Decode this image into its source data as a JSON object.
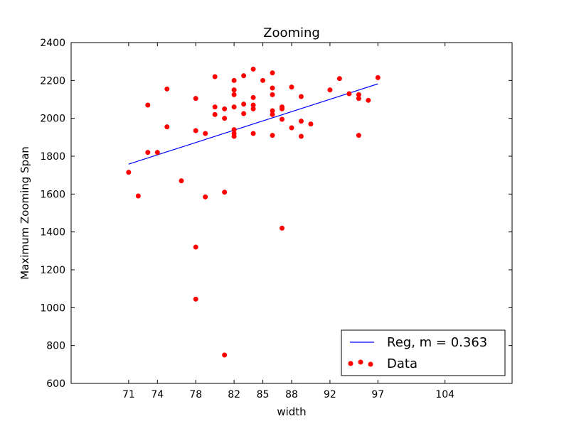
{
  "chart_data": {
    "type": "scatter",
    "title": "Zooming",
    "xlabel": "width",
    "ylabel": "Maximum Zooming Span",
    "xlim": [
      65,
      111
    ],
    "ylim": [
      600,
      2400
    ],
    "x_ticks": [
      71,
      74,
      78,
      82,
      85,
      88,
      92,
      97,
      104
    ],
    "y_ticks": [
      600,
      800,
      1000,
      1200,
      1400,
      1600,
      1800,
      2000,
      2200,
      2400
    ],
    "grid": false,
    "legend_position": "bottom-right",
    "series": [
      {
        "name": "Data",
        "kind": "scatter",
        "color": "#ff0000",
        "points": [
          [
            71,
            1715
          ],
          [
            72,
            1590
          ],
          [
            73,
            2070
          ],
          [
            73,
            1820
          ],
          [
            74,
            1820
          ],
          [
            75,
            2155
          ],
          [
            75,
            1955
          ],
          [
            76.5,
            1670
          ],
          [
            78,
            2105
          ],
          [
            78,
            1935
          ],
          [
            78,
            1320
          ],
          [
            78,
            1045
          ],
          [
            79,
            1920
          ],
          [
            79,
            1585
          ],
          [
            80,
            2220
          ],
          [
            80,
            2060
          ],
          [
            80,
            2020
          ],
          [
            81,
            2050
          ],
          [
            81,
            2000
          ],
          [
            81,
            1610
          ],
          [
            81,
            750
          ],
          [
            82,
            2200
          ],
          [
            82,
            2150
          ],
          [
            82,
            2125
          ],
          [
            82,
            2060
          ],
          [
            82,
            1940
          ],
          [
            82,
            1920
          ],
          [
            82,
            1905
          ],
          [
            83,
            2225
          ],
          [
            83,
            2075
          ],
          [
            83,
            2025
          ],
          [
            84,
            2260
          ],
          [
            84,
            2110
          ],
          [
            84,
            2070
          ],
          [
            84,
            2050
          ],
          [
            84,
            1920
          ],
          [
            85,
            2200
          ],
          [
            86,
            2240
          ],
          [
            86,
            2160
          ],
          [
            86,
            2125
          ],
          [
            86,
            2040
          ],
          [
            86,
            2020
          ],
          [
            86,
            1910
          ],
          [
            87,
            2060
          ],
          [
            87,
            2050
          ],
          [
            87,
            1995
          ],
          [
            87,
            1420
          ],
          [
            88,
            2165
          ],
          [
            88,
            1950
          ],
          [
            89,
            2115
          ],
          [
            89,
            1985
          ],
          [
            89,
            1905
          ],
          [
            90,
            1970
          ],
          [
            92,
            2150
          ],
          [
            93,
            2210
          ],
          [
            94,
            2130
          ],
          [
            95,
            2125
          ],
          [
            95,
            2105
          ],
          [
            95,
            1910
          ],
          [
            96,
            2095
          ],
          [
            97,
            2215
          ]
        ]
      },
      {
        "name": "Reg, m = 0.363",
        "kind": "line",
        "color": "#0000ff",
        "points": [
          [
            71,
            1758
          ],
          [
            97,
            2182
          ]
        ]
      }
    ]
  }
}
